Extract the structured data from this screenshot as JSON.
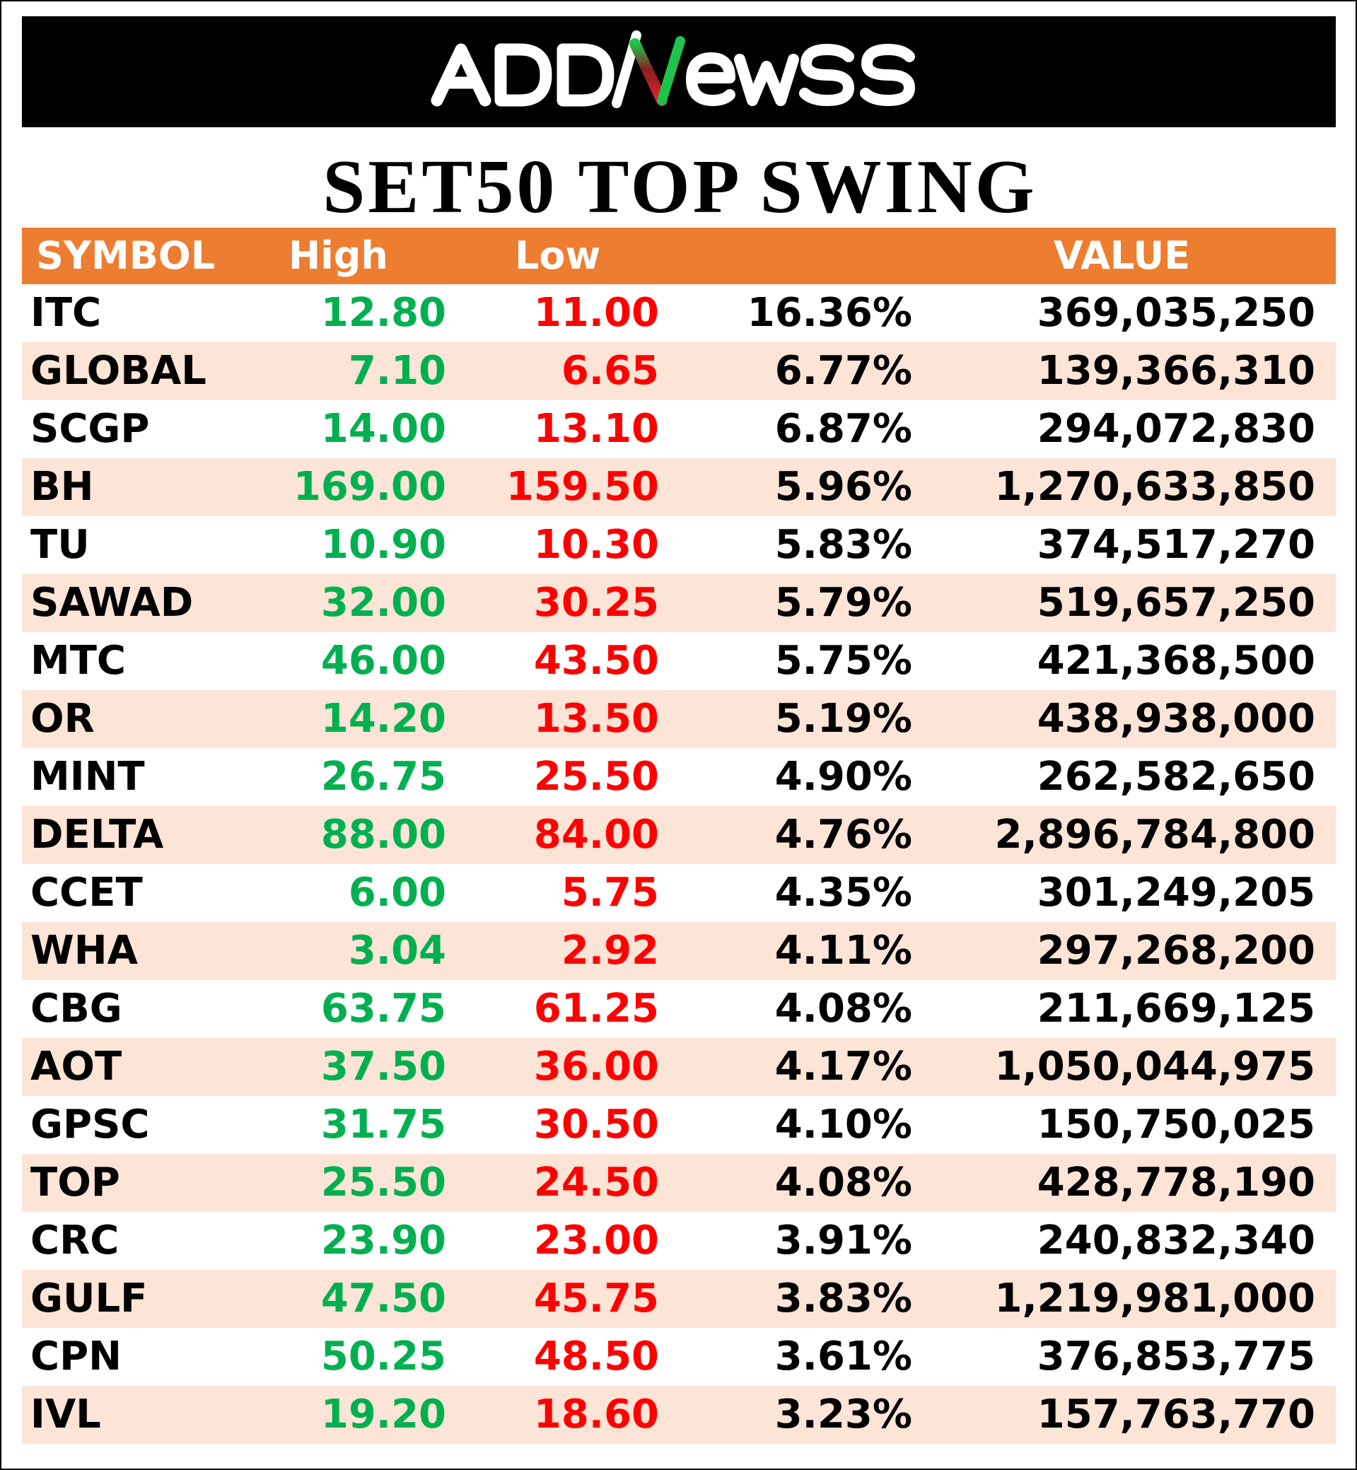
{
  "brand": {
    "name": "ADDNewss",
    "colors": {
      "banner_bg": "#000000",
      "logo_text": "#ffffff",
      "logo_accent_green": "#1fc24a",
      "logo_accent_red": "#e0202a"
    }
  },
  "title": "SET50 TOP SWING",
  "table": {
    "headers": {
      "symbol": "SYMBOL",
      "high": "High",
      "low": "Low",
      "pct": "",
      "value": "VALUE"
    },
    "colors": {
      "header_bg": "#ed7d31",
      "header_text": "#ffffff",
      "alt_row_bg": "#fce4d6",
      "high_text": "#00b050",
      "low_text": "#ff0000"
    },
    "rows": [
      {
        "symbol": "ITC",
        "high": "12.80",
        "low": "11.00",
        "pct": "16.36%",
        "value": "369,035,250"
      },
      {
        "symbol": "GLOBAL",
        "high": "7.10",
        "low": "6.65",
        "pct": "6.77%",
        "value": "139,366,310"
      },
      {
        "symbol": "SCGP",
        "high": "14.00",
        "low": "13.10",
        "pct": "6.87%",
        "value": "294,072,830"
      },
      {
        "symbol": "BH",
        "high": "169.00",
        "low": "159.50",
        "pct": "5.96%",
        "value": "1,270,633,850"
      },
      {
        "symbol": "TU",
        "high": "10.90",
        "low": "10.30",
        "pct": "5.83%",
        "value": "374,517,270"
      },
      {
        "symbol": "SAWAD",
        "high": "32.00",
        "low": "30.25",
        "pct": "5.79%",
        "value": "519,657,250"
      },
      {
        "symbol": "MTC",
        "high": "46.00",
        "low": "43.50",
        "pct": "5.75%",
        "value": "421,368,500"
      },
      {
        "symbol": "OR",
        "high": "14.20",
        "low": "13.50",
        "pct": "5.19%",
        "value": "438,938,000"
      },
      {
        "symbol": "MINT",
        "high": "26.75",
        "low": "25.50",
        "pct": "4.90%",
        "value": "262,582,650"
      },
      {
        "symbol": "DELTA",
        "high": "88.00",
        "low": "84.00",
        "pct": "4.76%",
        "value": "2,896,784,800"
      },
      {
        "symbol": "CCET",
        "high": "6.00",
        "low": "5.75",
        "pct": "4.35%",
        "value": "301,249,205"
      },
      {
        "symbol": "WHA",
        "high": "3.04",
        "low": "2.92",
        "pct": "4.11%",
        "value": "297,268,200"
      },
      {
        "symbol": "CBG",
        "high": "63.75",
        "low": "61.25",
        "pct": "4.08%",
        "value": "211,669,125"
      },
      {
        "symbol": "AOT",
        "high": "37.50",
        "low": "36.00",
        "pct": "4.17%",
        "value": "1,050,044,975"
      },
      {
        "symbol": "GPSC",
        "high": "31.75",
        "low": "30.50",
        "pct": "4.10%",
        "value": "150,750,025"
      },
      {
        "symbol": "TOP",
        "high": "25.50",
        "low": "24.50",
        "pct": "4.08%",
        "value": "428,778,190"
      },
      {
        "symbol": "CRC",
        "high": "23.90",
        "low": "23.00",
        "pct": "3.91%",
        "value": "240,832,340"
      },
      {
        "symbol": "GULF",
        "high": "47.50",
        "low": "45.75",
        "pct": "3.83%",
        "value": "1,219,981,000"
      },
      {
        "symbol": "CPN",
        "high": "50.25",
        "low": "48.50",
        "pct": "3.61%",
        "value": "376,853,775"
      },
      {
        "symbol": "IVL",
        "high": "19.20",
        "low": "18.60",
        "pct": "3.23%",
        "value": "157,763,770"
      }
    ]
  }
}
